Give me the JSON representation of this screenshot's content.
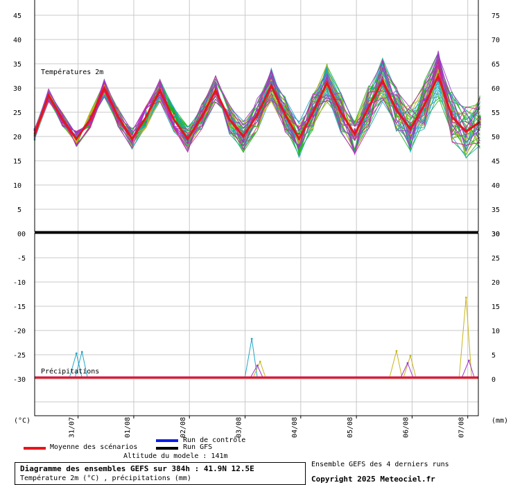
{
  "chart_data": {
    "type": "line",
    "x_dates": [
      "31/07",
      "01/08",
      "02/08",
      "03/08",
      "04/08",
      "05/08",
      "06/08",
      "07/08"
    ],
    "temperature": {
      "label": "Températures 2m",
      "ylim": [
        0,
        48
      ],
      "left_ticks": [
        "45",
        "40",
        "35",
        "30",
        "25",
        "20",
        "15",
        "10",
        "5",
        "0"
      ],
      "right_ticks": [
        "75",
        "70",
        "65",
        "60",
        "55",
        "50",
        "45",
        "40",
        "35",
        "30"
      ],
      "mean_series": [
        {
          "d": 0.0,
          "v": 20.5
        },
        {
          "d": 0.25,
          "v": 28.5
        },
        {
          "d": 0.5,
          "v": 23.5
        },
        {
          "d": 0.75,
          "v": 19.5
        },
        {
          "d": 1.0,
          "v": 23.5
        },
        {
          "d": 1.25,
          "v": 30.0
        },
        {
          "d": 1.5,
          "v": 24.0
        },
        {
          "d": 1.75,
          "v": 19.5
        },
        {
          "d": 2.0,
          "v": 24.0
        },
        {
          "d": 2.25,
          "v": 29.5
        },
        {
          "d": 2.5,
          "v": 23.5
        },
        {
          "d": 2.75,
          "v": 19.5
        },
        {
          "d": 3.0,
          "v": 24.0
        },
        {
          "d": 3.25,
          "v": 29.5
        },
        {
          "d": 3.5,
          "v": 23.5
        },
        {
          "d": 3.75,
          "v": 20.0
        },
        {
          "d": 4.0,
          "v": 24.5
        },
        {
          "d": 4.25,
          "v": 30.5
        },
        {
          "d": 4.5,
          "v": 24.5
        },
        {
          "d": 4.75,
          "v": 19.5
        },
        {
          "d": 5.0,
          "v": 25.0
        },
        {
          "d": 5.25,
          "v": 31.0
        },
        {
          "d": 5.5,
          "v": 25.0
        },
        {
          "d": 5.75,
          "v": 20.5
        },
        {
          "d": 6.0,
          "v": 26.0
        },
        {
          "d": 6.25,
          "v": 31.5
        },
        {
          "d": 6.5,
          "v": 25.5
        },
        {
          "d": 6.75,
          "v": 21.5
        },
        {
          "d": 7.0,
          "v": 26.5
        },
        {
          "d": 7.25,
          "v": 32.5
        },
        {
          "d": 7.5,
          "v": 24.0
        },
        {
          "d": 7.75,
          "v": 21.0
        },
        {
          "d": 8.0,
          "v": 23.0
        }
      ]
    },
    "precipitation": {
      "label": "Précipitations",
      "left_ticks": [
        "0",
        "-5",
        "-10",
        "-15",
        "-20",
        "-25",
        "-30"
      ],
      "right_ticks": [
        "30",
        "25",
        "20",
        "15",
        "10",
        "5",
        "0"
      ],
      "spikes": [
        {
          "d": 0.75,
          "mm": 5.0,
          "color": "#1fa6c9"
        },
        {
          "d": 0.85,
          "mm": 5.3,
          "color": "#1fa6c9"
        },
        {
          "d": 3.9,
          "mm": 8.0,
          "color": "#1fa6c9"
        },
        {
          "d": 4.05,
          "mm": 3.3,
          "color": "#c8b419"
        },
        {
          "d": 4.0,
          "mm": 2.5,
          "color": "#a036d1"
        },
        {
          "d": 6.5,
          "mm": 5.5,
          "color": "#c8b419"
        },
        {
          "d": 6.75,
          "mm": 4.5,
          "color": "#c8b419"
        },
        {
          "d": 6.7,
          "mm": 3.0,
          "color": "#a036d1"
        },
        {
          "d": 7.75,
          "mm": 16.5,
          "color": "#c8b419"
        },
        {
          "d": 7.8,
          "mm": 3.5,
          "color": "#a036d1"
        }
      ]
    },
    "axis_unit_left": "(°C)",
    "axis_unit_right": "(mm)",
    "colors": {
      "mean": "#e8141b",
      "control": "#0a1ee6",
      "gfs": "#000000",
      "ensemble_green": "#1eb41e",
      "ensemble_cyan": "#1fa6c9",
      "ensemble_yellow": "#c8b419",
      "ensemble_magenta": "#d21e9a",
      "ensemble_purple": "#a036d1",
      "grid": "#c8c8c8"
    }
  },
  "legend": {
    "mean": "Moyenne des scénarios",
    "control": "Run de contrôle",
    "gfs": "Run GFS"
  },
  "footer": {
    "altitude": "Altitude du modele : 141m",
    "title": "Diagramme des ensembles GEFS sur 384h : 41.9N 12.5E",
    "subtitle": "Température 2m (°C) , précipitations (mm)",
    "ensemble_note": "Ensemble GEFS des 4 derniers runs",
    "copyright": "Copyright 2025 Meteociel.fr"
  }
}
